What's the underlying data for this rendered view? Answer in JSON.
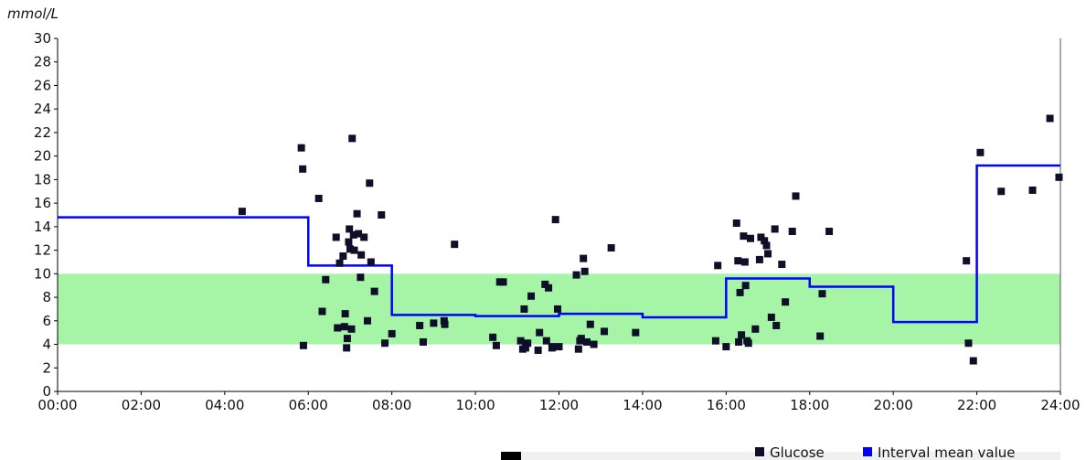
{
  "chart_data": {
    "type": "scatter",
    "ylabel": "mmol/L",
    "xlim": [
      "00:00",
      "24:00"
    ],
    "ylim": [
      0,
      30
    ],
    "x_ticks": [
      "00:00",
      "02:00",
      "04:00",
      "06:00",
      "08:00",
      "10:00",
      "12:00",
      "14:00",
      "16:00",
      "18:00",
      "20:00",
      "22:00",
      "24:00"
    ],
    "y_ticks": [
      "0",
      "2",
      "4",
      "6",
      "8",
      "10",
      "12",
      "14",
      "16",
      "18",
      "20",
      "22",
      "24",
      "26",
      "28",
      "30"
    ],
    "target_range": {
      "low": 4,
      "high": 10,
      "color": "#a6f5a6"
    },
    "colors": {
      "glucose": "#0f0f2a",
      "interval_mean": "#0000ff"
    },
    "legend": {
      "position": "bottom-right",
      "entries": [
        "Glucose",
        "Interval mean value"
      ]
    },
    "series": [
      {
        "name": "Glucose",
        "points": [
          [
            "04:25",
            15.3
          ],
          [
            "05:50",
            20.7
          ],
          [
            "05:52",
            18.9
          ],
          [
            "05:53",
            3.9
          ],
          [
            "06:15",
            16.4
          ],
          [
            "06:20",
            6.8
          ],
          [
            "06:25",
            9.5
          ],
          [
            "06:40",
            13.1
          ],
          [
            "06:42",
            5.4
          ],
          [
            "06:45",
            10.9
          ],
          [
            "06:50",
            11.5
          ],
          [
            "06:52",
            5.5
          ],
          [
            "06:53",
            6.6
          ],
          [
            "06:55",
            3.7
          ],
          [
            "06:56",
            4.5
          ],
          [
            "06:58",
            12.7
          ],
          [
            "06:59",
            13.8
          ],
          [
            "07:00",
            12.1
          ],
          [
            "07:02",
            5.3
          ],
          [
            "07:03",
            21.5
          ],
          [
            "07:05",
            13.3
          ],
          [
            "07:06",
            12.0
          ],
          [
            "07:10",
            15.1
          ],
          [
            "07:12",
            13.4
          ],
          [
            "07:15",
            9.7
          ],
          [
            "07:16",
            11.6
          ],
          [
            "07:20",
            13.1
          ],
          [
            "07:25",
            6.0
          ],
          [
            "07:28",
            17.7
          ],
          [
            "07:30",
            11.0
          ],
          [
            "07:35",
            8.5
          ],
          [
            "07:45",
            15.0
          ],
          [
            "07:50",
            4.1
          ],
          [
            "08:00",
            4.9
          ],
          [
            "08:40",
            5.6
          ],
          [
            "08:45",
            4.2
          ],
          [
            "09:00",
            5.8
          ],
          [
            "09:15",
            6.0
          ],
          [
            "09:16",
            5.7
          ],
          [
            "09:30",
            12.5
          ],
          [
            "10:25",
            4.6
          ],
          [
            "10:30",
            3.9
          ],
          [
            "10:35",
            9.3
          ],
          [
            "10:40",
            9.3
          ],
          [
            "11:05",
            4.3
          ],
          [
            "11:08",
            3.6
          ],
          [
            "11:10",
            7.0
          ],
          [
            "11:12",
            3.7
          ],
          [
            "11:15",
            4.1
          ],
          [
            "11:20",
            8.1
          ],
          [
            "11:30",
            3.5
          ],
          [
            "11:32",
            5.0
          ],
          [
            "11:40",
            9.1
          ],
          [
            "11:42",
            4.3
          ],
          [
            "11:45",
            8.8
          ],
          [
            "11:50",
            3.7
          ],
          [
            "11:52",
            3.8
          ],
          [
            "11:55",
            14.6
          ],
          [
            "11:58",
            7.0
          ],
          [
            "12:00",
            3.8
          ],
          [
            "12:25",
            9.9
          ],
          [
            "12:28",
            3.6
          ],
          [
            "12:30",
            4.3
          ],
          [
            "12:32",
            4.5
          ],
          [
            "12:35",
            11.3
          ],
          [
            "12:37",
            10.2
          ],
          [
            "12:40",
            4.2
          ],
          [
            "12:45",
            5.7
          ],
          [
            "12:50",
            4.0
          ],
          [
            "13:05",
            5.1
          ],
          [
            "13:15",
            12.2
          ],
          [
            "13:50",
            5.0
          ],
          [
            "15:45",
            4.3
          ],
          [
            "15:48",
            10.7
          ],
          [
            "16:00",
            3.8
          ],
          [
            "16:15",
            14.3
          ],
          [
            "16:17",
            11.1
          ],
          [
            "16:18",
            4.2
          ],
          [
            "16:20",
            8.4
          ],
          [
            "16:22",
            4.8
          ],
          [
            "16:25",
            13.2
          ],
          [
            "16:27",
            11.0
          ],
          [
            "16:28",
            9.0
          ],
          [
            "16:30",
            4.3
          ],
          [
            "16:32",
            4.1
          ],
          [
            "16:35",
            13.0
          ],
          [
            "16:42",
            5.3
          ],
          [
            "16:48",
            11.2
          ],
          [
            "16:50",
            13.1
          ],
          [
            "16:55",
            12.8
          ],
          [
            "16:58",
            12.4
          ],
          [
            "17:00",
            11.7
          ],
          [
            "17:05",
            6.3
          ],
          [
            "17:10",
            13.8
          ],
          [
            "17:12",
            5.6
          ],
          [
            "17:20",
            10.8
          ],
          [
            "17:25",
            7.6
          ],
          [
            "17:35",
            13.6
          ],
          [
            "17:40",
            16.6
          ],
          [
            "18:15",
            4.7
          ],
          [
            "18:18",
            8.3
          ],
          [
            "18:28",
            13.6
          ],
          [
            "21:45",
            11.1
          ],
          [
            "21:48",
            4.1
          ],
          [
            "21:55",
            2.6
          ],
          [
            "22:05",
            20.3
          ],
          [
            "22:35",
            17.0
          ],
          [
            "23:20",
            17.1
          ],
          [
            "23:45",
            23.2
          ],
          [
            "23:58",
            18.2
          ]
        ]
      },
      {
        "name": "Interval mean value",
        "steps": [
          {
            "from": "00:00",
            "to": "06:00",
            "value": 14.8
          },
          {
            "from": "06:00",
            "to": "08:00",
            "value": 10.7
          },
          {
            "from": "08:00",
            "to": "10:00",
            "value": 6.5
          },
          {
            "from": "10:00",
            "to": "12:00",
            "value": 6.4
          },
          {
            "from": "12:00",
            "to": "14:00",
            "value": 6.6
          },
          {
            "from": "14:00",
            "to": "16:00",
            "value": 6.3
          },
          {
            "from": "16:00",
            "to": "18:00",
            "value": 9.6
          },
          {
            "from": "18:00",
            "to": "20:00",
            "value": 8.9
          },
          {
            "from": "20:00",
            "to": "22:00",
            "value": 5.9
          },
          {
            "from": "22:00",
            "to": "24:00",
            "value": 19.2
          }
        ]
      }
    ]
  }
}
